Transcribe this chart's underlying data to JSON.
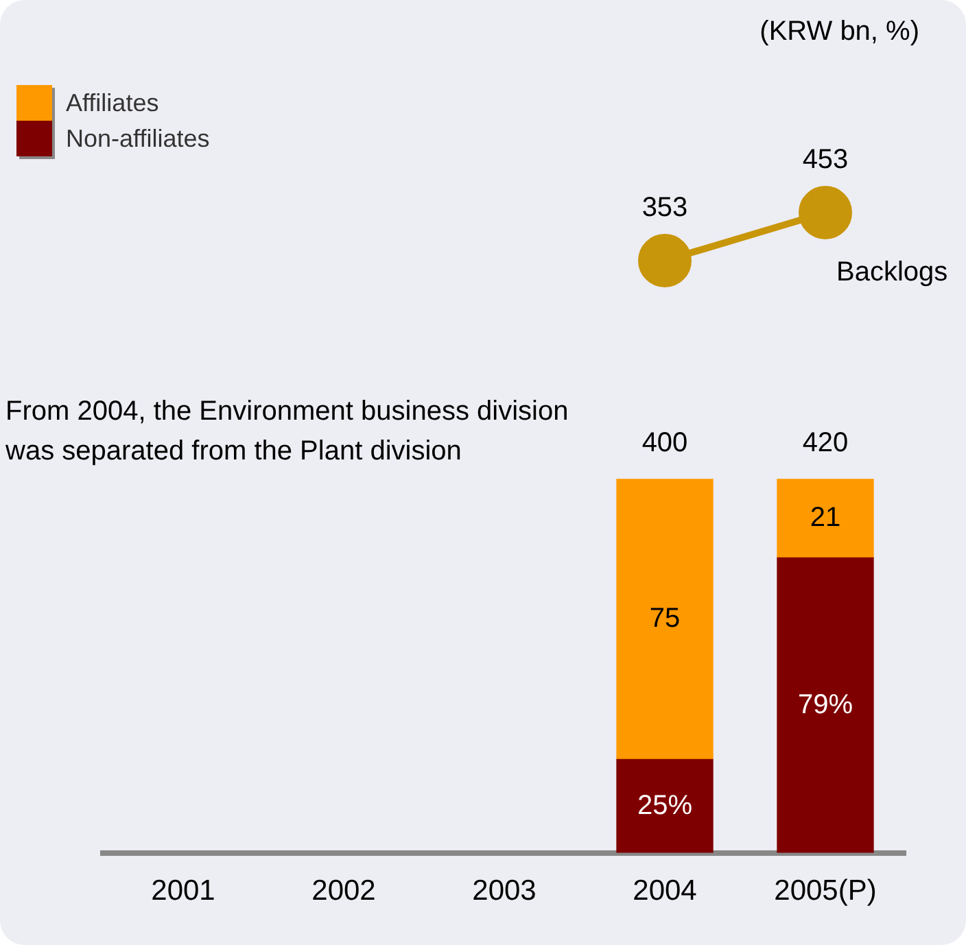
{
  "chart_data": [
    {
      "type": "line",
      "tick_labels": false,
      "categories": [
        null,
        null,
        null,
        null,
        null
      ],
      "series": [
        {
          "name": "Backlogs",
          "color": "#c8960a",
          "marker": "circle",
          "values": [
            null,
            null,
            null,
            353,
            453
          ],
          "data_labels": true
        }
      ]
    },
    {
      "type": "bar",
      "stacked": true,
      "categories": [
        "2001",
        "2002",
        "2003",
        "2004",
        "2005(P)"
      ],
      "series": [
        {
          "name": "Non-affiliates",
          "color": "#7f0000",
          "values": [
            null,
            null,
            null,
            25,
            79
          ],
          "value_labels": [
            null,
            null,
            null,
            "25%",
            "79%"
          ]
        },
        {
          "name": "Affiliates",
          "color": "#ff9900",
          "values": [
            null,
            null,
            null,
            75,
            21
          ],
          "value_labels": [
            null,
            null,
            null,
            "75",
            "21"
          ]
        }
      ],
      "legend": "top left",
      "grid": false,
      "tick_labels": "x",
      "annotations": [
        "(KRW bn, %)",
        "From 2004, the Environment business division was separated from the Plant division",
        {
          "text": "400",
          "x": "2004",
          "y": 100
        },
        {
          "text": "420",
          "x": "2005(P)",
          "y": 100
        }
      ]
    }
  ]
}
